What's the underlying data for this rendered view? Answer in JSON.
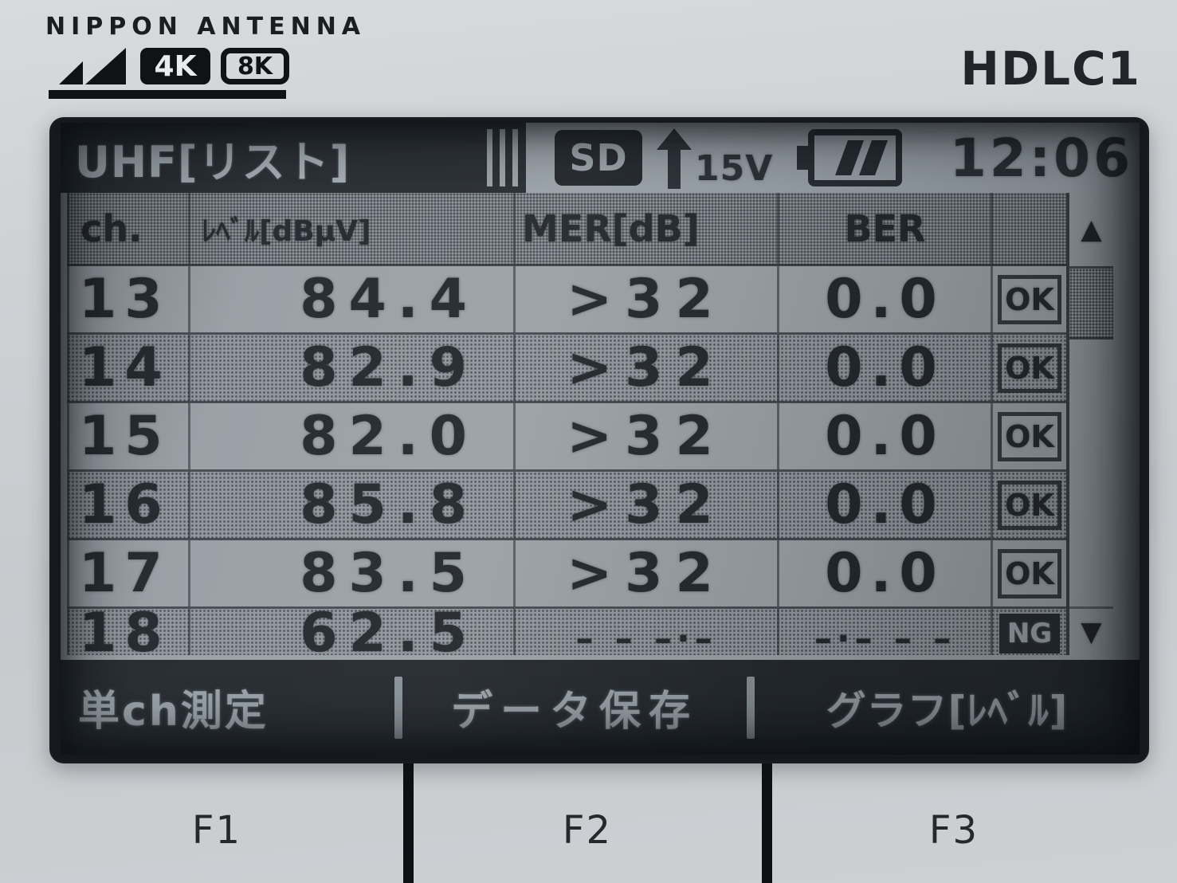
{
  "device": {
    "brand": "NIPPON ANTENNA",
    "badge_4k": "4K",
    "badge_8k": "8K",
    "model": "HDLC1",
    "function_keys": [
      "F1",
      "F2",
      "F3"
    ]
  },
  "screen": {
    "title": "UHF[リスト]",
    "status_bar": {
      "sd": "SD",
      "antenna_voltage": "15V",
      "time": "12:06"
    },
    "table": {
      "headers": {
        "ch": "ch.",
        "level": "ﾚﾍﾞﾙ[dBμV]",
        "mer": "MER[dB]",
        "ber": "BER"
      },
      "rows": [
        {
          "ch": "13",
          "level": "84.4",
          "mer": ">32",
          "ber": "0.0",
          "status": "OK"
        },
        {
          "ch": "14",
          "level": "82.9",
          "mer": ">32",
          "ber": "0.0",
          "status": "OK"
        },
        {
          "ch": "15",
          "level": "82.0",
          "mer": ">32",
          "ber": "0.0",
          "status": "OK"
        },
        {
          "ch": "16",
          "level": "85.8",
          "mer": ">32",
          "ber": "0.0",
          "status": "OK"
        },
        {
          "ch": "17",
          "level": "83.5",
          "mer": ">32",
          "ber": "0.0",
          "status": "OK"
        },
        {
          "ch": "18",
          "level": "62.5",
          "mer": "– – –·–",
          "ber": "–·– – –",
          "status": "NG"
        }
      ],
      "scroll_up": "▲",
      "scroll_down": "▼"
    },
    "softkeys": [
      "単ch測定",
      "データ保存",
      "グラフ[ﾚﾍﾞﾙ]"
    ],
    "colors": {
      "lcd_bg": "#9aa1a7",
      "lcd_ink": "#23282d",
      "bar_bg": "#262b30",
      "bar_text": "#9aa3aa"
    }
  }
}
